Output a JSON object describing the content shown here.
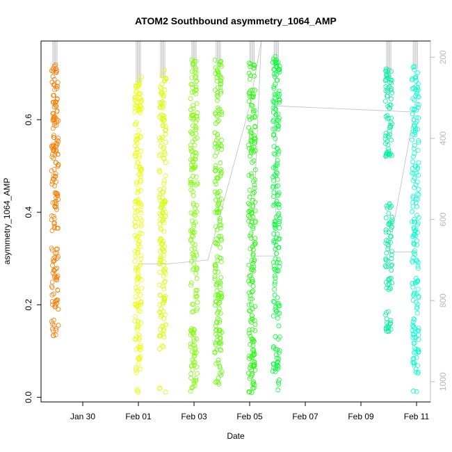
{
  "chart_data": {
    "type": "scatter",
    "title": "ATOM2 Southbound asymmetry_1064_AMP",
    "xlabel": "Date",
    "ylabel": "asymmetry_1064_AMP",
    "xlim": [
      "2018-01-28T12:00",
      "2018-02-11T12:00"
    ],
    "ylim": [
      -0.01,
      0.77
    ],
    "x_ticks": [
      {
        "label": "Jan 30",
        "date": "2018-01-30"
      },
      {
        "label": "Feb 01",
        "date": "2018-02-01"
      },
      {
        "label": "Feb 03",
        "date": "2018-02-03"
      },
      {
        "label": "Feb 05",
        "date": "2018-02-05"
      },
      {
        "label": "Feb 07",
        "date": "2018-02-07"
      },
      {
        "label": "Feb 09",
        "date": "2018-02-09"
      },
      {
        "label": "Feb 11",
        "date": "2018-02-11"
      }
    ],
    "y_ticks": [
      "0.0",
      "0.2",
      "0.4",
      "0.6"
    ],
    "secondary_axis": {
      "range": [
        1050,
        160
      ],
      "ticks": [
        "200",
        "400",
        "600",
        "800",
        "1000"
      ],
      "color": "#b8b8b8"
    },
    "grid": false,
    "legend": "none",
    "series": [
      {
        "date": "2018-01-29T00:00",
        "color": "#f57c00",
        "y_range": [
          0.13,
          0.72
        ],
        "y_gaps": [
          [
            0.33,
            0.36
          ],
          [
            0.17,
            0.19
          ]
        ]
      },
      {
        "date": "2018-02-01T00:00",
        "color": "#e6ff00",
        "y_range": [
          0.01,
          0.7
        ],
        "y_gaps": [
          [
            0.02,
            0.05
          ]
        ]
      },
      {
        "date": "2018-02-01T21:00",
        "color": "#d4ff00",
        "y_range": [
          0.01,
          0.71
        ],
        "y_gaps": [
          [
            0.02,
            0.1
          ]
        ]
      },
      {
        "date": "2018-02-03T00:00",
        "color": "#7cff00",
        "y_range": [
          0.01,
          0.73
        ],
        "y_gaps": []
      },
      {
        "date": "2018-02-03T21:00",
        "color": "#5cff00",
        "y_range": [
          0.02,
          0.74
        ],
        "y_gaps": []
      },
      {
        "date": "2018-02-05T02:00",
        "color": "#1aff00",
        "y_range": [
          0.01,
          0.73
        ],
        "y_gaps": []
      },
      {
        "date": "2018-02-05T23:00",
        "color": "#00ff33",
        "y_range": [
          0.01,
          0.74
        ],
        "y_gaps": []
      },
      {
        "date": "2018-02-10T00:00",
        "color": "#00f0a0",
        "y_range": [
          0.14,
          0.71
        ],
        "y_gaps": [
          [
            0.19,
            0.23
          ],
          [
            0.43,
            0.52
          ]
        ]
      },
      {
        "date": "2018-02-10T23:00",
        "color": "#00ffcc",
        "y_range": [
          0.01,
          0.73
        ],
        "y_gaps": [
          [
            0.02,
            0.05
          ]
        ]
      }
    ],
    "overlay_track": [
      {
        "date": "2018-02-01T00:00",
        "secondary": 710
      },
      {
        "date": "2018-02-02T00:00",
        "secondary": 710
      },
      {
        "date": "2018-02-03T12:00",
        "secondary": 700
      },
      {
        "date": "2018-02-05T00:00",
        "secondary": 320
      },
      {
        "date": "2018-02-05T10:00",
        "secondary": 160
      },
      {
        "date": "2018-02-05T02:00",
        "secondary": 690
      },
      {
        "date": "2018-02-05T22:00",
        "secondary": 690
      },
      {
        "date": "2018-02-05T23:00",
        "secondary": 320
      },
      {
        "date": "2018-02-10T22:00",
        "secondary": 335
      },
      {
        "date": "2018-02-10T00:00",
        "secondary": 680
      },
      {
        "date": "2018-02-10T22:00",
        "secondary": 680
      }
    ]
  }
}
